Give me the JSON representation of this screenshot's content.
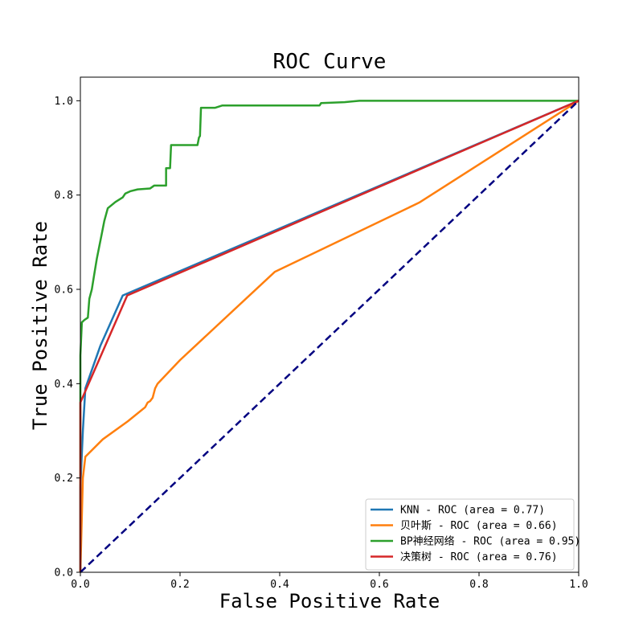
{
  "chart_data": {
    "type": "line",
    "title": "ROC Curve",
    "xlabel": "False Positive Rate",
    "ylabel": "True Positive Rate",
    "xlim": [
      0.0,
      1.0
    ],
    "ylim": [
      0.0,
      1.05
    ],
    "xticks": [
      "0.0",
      "0.2",
      "0.4",
      "0.6",
      "0.8",
      "1.0"
    ],
    "yticks": [
      "0.0",
      "0.2",
      "0.4",
      "0.6",
      "0.8",
      "1.0"
    ],
    "legend_position": "lower-right",
    "series": [
      {
        "name": "KNN - ROC (area = 0.77)",
        "color": "#1f77b4",
        "points": [
          [
            0.0,
            0.0
          ],
          [
            0.0,
            0.18
          ],
          [
            0.005,
            0.3
          ],
          [
            0.01,
            0.39
          ],
          [
            0.04,
            0.48
          ],
          [
            0.085,
            0.587
          ],
          [
            1.0,
            1.0
          ]
        ]
      },
      {
        "name": "贝叶斯 - ROC (area = 0.66)",
        "color": "#ff7f0e",
        "points": [
          [
            0.0,
            0.0
          ],
          [
            0.005,
            0.2
          ],
          [
            0.01,
            0.245
          ],
          [
            0.045,
            0.282
          ],
          [
            0.095,
            0.32
          ],
          [
            0.13,
            0.35
          ],
          [
            0.135,
            0.36
          ],
          [
            0.14,
            0.363
          ],
          [
            0.145,
            0.37
          ],
          [
            0.15,
            0.39
          ],
          [
            0.155,
            0.4
          ],
          [
            0.2,
            0.45
          ],
          [
            0.39,
            0.637
          ],
          [
            0.68,
            0.784
          ],
          [
            1.0,
            1.0
          ]
        ]
      },
      {
        "name": "BP神经网络 - ROC (area = 0.95)",
        "color": "#2ca02c",
        "points": [
          [
            0.0,
            0.0
          ],
          [
            0.0,
            0.46
          ],
          [
            0.003,
            0.53
          ],
          [
            0.008,
            0.535
          ],
          [
            0.015,
            0.54
          ],
          [
            0.018,
            0.58
          ],
          [
            0.023,
            0.6
          ],
          [
            0.028,
            0.633
          ],
          [
            0.033,
            0.665
          ],
          [
            0.043,
            0.718
          ],
          [
            0.048,
            0.745
          ],
          [
            0.055,
            0.772
          ],
          [
            0.07,
            0.785
          ],
          [
            0.085,
            0.795
          ],
          [
            0.09,
            0.803
          ],
          [
            0.1,
            0.808
          ],
          [
            0.115,
            0.812
          ],
          [
            0.14,
            0.814
          ],
          [
            0.148,
            0.82
          ],
          [
            0.172,
            0.82
          ],
          [
            0.172,
            0.857
          ],
          [
            0.18,
            0.857
          ],
          [
            0.182,
            0.906
          ],
          [
            0.235,
            0.906
          ],
          [
            0.238,
            0.922
          ],
          [
            0.24,
            0.925
          ],
          [
            0.242,
            0.985
          ],
          [
            0.27,
            0.985
          ],
          [
            0.285,
            0.99
          ],
          [
            0.48,
            0.99
          ],
          [
            0.483,
            0.995
          ],
          [
            0.53,
            0.997
          ],
          [
            0.56,
            1.0
          ],
          [
            1.0,
            1.0
          ]
        ]
      },
      {
        "name": "决策树 - ROC (area = 0.76)",
        "color": "#d62728",
        "points": [
          [
            0.0,
            0.0
          ],
          [
            0.0,
            0.36
          ],
          [
            0.094,
            0.587
          ],
          [
            1.0,
            1.0
          ]
        ]
      }
    ],
    "reference_line": {
      "color": "#000080",
      "style": "dashed",
      "points": [
        [
          0.0,
          0.0
        ],
        [
          1.0,
          1.0
        ]
      ]
    }
  }
}
